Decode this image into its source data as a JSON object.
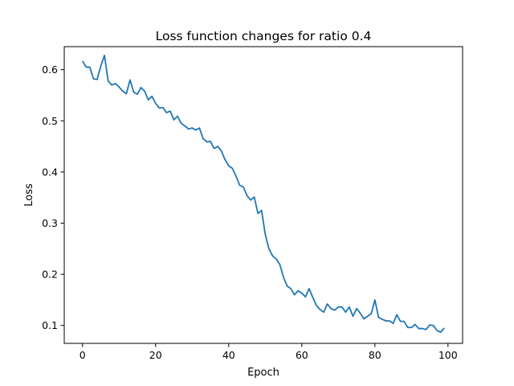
{
  "chart_data": {
    "type": "line",
    "title": "Loss function changes for ratio 0.4",
    "xlabel": "Epoch",
    "ylabel": "Loss",
    "xlim": [
      -5.0,
      104.0
    ],
    "ylim": [
      0.065,
      0.645
    ],
    "xticks": [
      0,
      20,
      40,
      60,
      80,
      100
    ],
    "yticks": [
      0.1,
      0.2,
      0.3,
      0.4,
      0.5,
      0.6
    ],
    "xtick_labels": [
      "0",
      "20",
      "40",
      "60",
      "80",
      "100"
    ],
    "ytick_labels": [
      "0.1",
      "0.2",
      "0.3",
      "0.4",
      "0.5",
      "0.6"
    ],
    "grid": false,
    "line_color": "#1f77b4",
    "x": [
      0,
      1,
      2,
      3,
      4,
      5,
      6,
      7,
      8,
      9,
      10,
      11,
      12,
      13,
      14,
      15,
      16,
      17,
      18,
      19,
      20,
      21,
      22,
      23,
      24,
      25,
      26,
      27,
      28,
      29,
      30,
      31,
      32,
      33,
      34,
      35,
      36,
      37,
      38,
      39,
      40,
      41,
      42,
      43,
      44,
      45,
      46,
      47,
      48,
      49,
      50,
      51,
      52,
      53,
      54,
      55,
      56,
      57,
      58,
      59,
      60,
      61,
      62,
      63,
      64,
      65,
      66,
      67,
      68,
      69,
      70,
      71,
      72,
      73,
      74,
      75,
      76,
      77,
      78,
      79,
      80,
      81,
      82,
      83,
      84,
      85,
      86,
      87,
      88,
      89,
      90,
      91,
      92,
      93,
      94,
      95,
      96,
      97,
      98,
      99
    ],
    "y": [
      0.617,
      0.605,
      0.605,
      0.582,
      0.581,
      0.607,
      0.628,
      0.578,
      0.57,
      0.573,
      0.566,
      0.558,
      0.553,
      0.58,
      0.556,
      0.552,
      0.565,
      0.558,
      0.541,
      0.548,
      0.534,
      0.525,
      0.526,
      0.516,
      0.519,
      0.502,
      0.509,
      0.495,
      0.49,
      0.484,
      0.486,
      0.482,
      0.486,
      0.465,
      0.459,
      0.46,
      0.446,
      0.45,
      0.441,
      0.424,
      0.412,
      0.407,
      0.392,
      0.374,
      0.371,
      0.354,
      0.345,
      0.351,
      0.319,
      0.325,
      0.278,
      0.25,
      0.236,
      0.23,
      0.219,
      0.194,
      0.177,
      0.172,
      0.16,
      0.168,
      0.163,
      0.156,
      0.172,
      0.155,
      0.139,
      0.131,
      0.126,
      0.142,
      0.133,
      0.13,
      0.136,
      0.136,
      0.126,
      0.136,
      0.118,
      0.133,
      0.124,
      0.113,
      0.118,
      0.123,
      0.15,
      0.116,
      0.112,
      0.109,
      0.109,
      0.104,
      0.121,
      0.108,
      0.108,
      0.096,
      0.096,
      0.102,
      0.094,
      0.094,
      0.092,
      0.101,
      0.1,
      0.09,
      0.087,
      0.095
    ]
  }
}
